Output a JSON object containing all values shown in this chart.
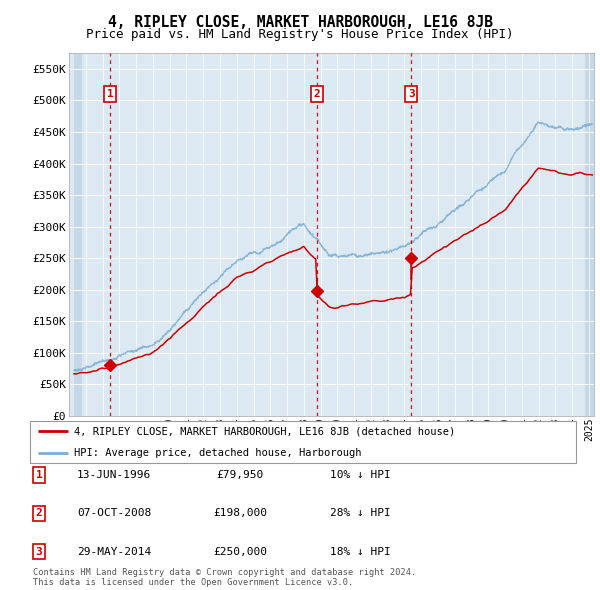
{
  "title": "4, RIPLEY CLOSE, MARKET HARBOROUGH, LE16 8JB",
  "subtitle": "Price paid vs. HM Land Registry's House Price Index (HPI)",
  "ylabel_ticks": [
    "£0",
    "£50K",
    "£100K",
    "£150K",
    "£200K",
    "£250K",
    "£300K",
    "£350K",
    "£400K",
    "£450K",
    "£500K",
    "£550K"
  ],
  "ytick_values": [
    0,
    50000,
    100000,
    150000,
    200000,
    250000,
    300000,
    350000,
    400000,
    450000,
    500000,
    550000
  ],
  "ylim": [
    0,
    575000
  ],
  "xlim_start": 1994.3,
  "xlim_end": 2025.3,
  "transactions": [
    {
      "year": 1996.45,
      "price": 79950,
      "label": "1",
      "date": "13-JUN-1996",
      "price_str": "£79,950",
      "hpi_str": "10% ↓ HPI"
    },
    {
      "year": 2008.77,
      "price": 198000,
      "label": "2",
      "date": "07-OCT-2008",
      "price_str": "£198,000",
      "hpi_str": "28% ↓ HPI"
    },
    {
      "year": 2014.41,
      "price": 250000,
      "label": "3",
      "date": "29-MAY-2014",
      "price_str": "£250,000",
      "hpi_str": "18% ↓ HPI"
    }
  ],
  "red_line_color": "#cc0000",
  "blue_line_color": "#7aadd4",
  "dashed_line_color": "#cc0000",
  "marker_color": "#cc0000",
  "background_plot": "#dce8f2",
  "background_hatch": "#c5d8e8",
  "grid_color": "#ffffff",
  "legend_label_red": "4, RIPLEY CLOSE, MARKET HARBOROUGH, LE16 8JB (detached house)",
  "legend_label_blue": "HPI: Average price, detached house, Harborough",
  "footer": "Contains HM Land Registry data © Crown copyright and database right 2024.\nThis data is licensed under the Open Government Licence v3.0.",
  "title_fontsize": 10.5,
  "subtitle_fontsize": 9,
  "axis_fontsize": 8
}
